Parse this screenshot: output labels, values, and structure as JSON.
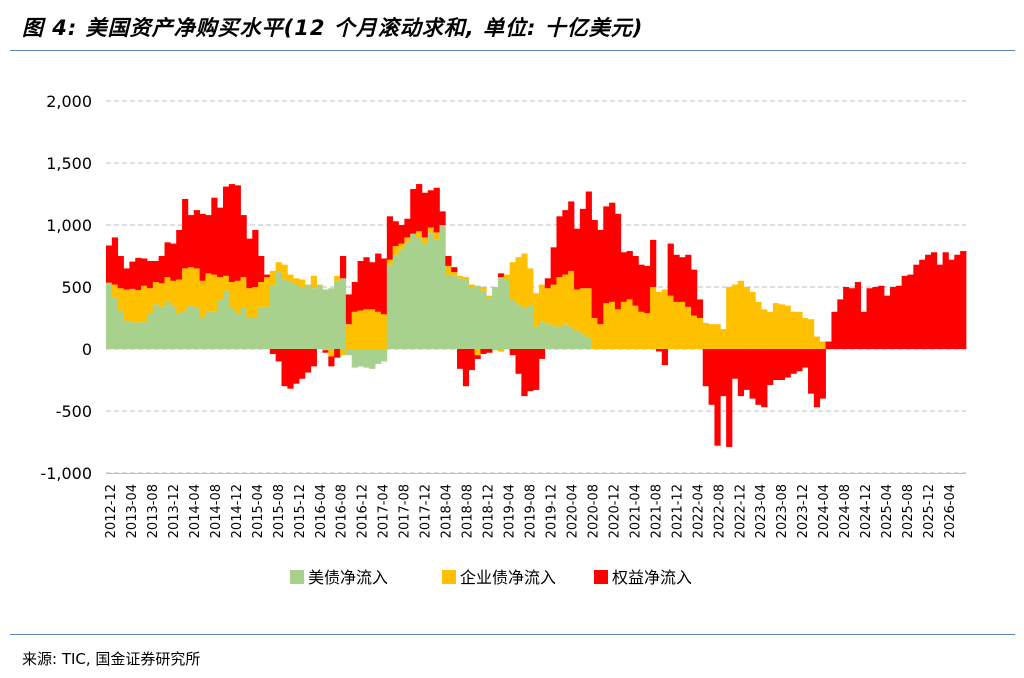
{
  "figure": {
    "title": "图 4:  美国资产净购买水平(12 个月滚动求和, 单位: 十亿美元)",
    "source": "来源: TIC, 国金证券研究所"
  },
  "chart_data": {
    "type": "bar",
    "stacked": true,
    "ylim": [
      -1000,
      2000
    ],
    "yticks": [
      2000,
      1500,
      1000,
      500,
      0,
      -500,
      -1000
    ],
    "ytick_labels": [
      "2,000",
      "1,500",
      "1,000",
      "500",
      "0",
      "-500",
      "-1,000"
    ],
    "grid": true,
    "legend_position": "bottom",
    "xtick_labels": [
      "2012-12",
      "2013-04",
      "2013-08",
      "2013-12",
      "2014-04",
      "2014-08",
      "2014-12",
      "2015-04",
      "2015-08",
      "2015-12",
      "2016-04",
      "2016-08",
      "2016-12",
      "2017-04",
      "2017-08",
      "2017-12",
      "2018-04",
      "2018-08",
      "2018-12",
      "2019-04",
      "2019-08",
      "2019-12",
      "2020-04",
      "2020-08",
      "2020-12",
      "2021-04",
      "2021-08",
      "2021-12",
      "2022-04",
      "2022-08",
      "2022-12",
      "2023-04",
      "2023-08",
      "2023-12",
      "2024-04",
      "2024-08",
      "2024-12",
      "2025-04",
      "2025-08",
      "2025-12",
      "2026-04"
    ],
    "series": [
      {
        "name": "美债净流入",
        "color": "#a9d18e",
        "values": [
          535,
          420,
          310,
          230,
          215,
          215,
          220,
          290,
          360,
          340,
          380,
          350,
          290,
          310,
          350,
          330,
          250,
          300,
          300,
          400,
          470,
          330,
          290,
          330,
          250,
          250,
          340,
          340,
          510,
          620,
          560,
          540,
          520,
          500,
          520,
          490,
          510,
          480,
          490,
          550,
          570,
          -50,
          -150,
          -140,
          -150,
          -160,
          -120,
          -100,
          680,
          760,
          800,
          860,
          930,
          900,
          850,
          940,
          880,
          1000,
          600,
          590,
          570,
          560,
          500,
          510,
          470,
          410,
          500,
          580,
          560,
          400,
          360,
          330,
          350,
          180,
          220,
          200,
          190,
          180,
          200,
          180,
          150,
          120,
          90,
          0
        ]
      },
      {
        "name": "企业债净流入",
        "color": "#ffc000",
        "values": [
          0,
          100,
          180,
          250,
          270,
          260,
          290,
          200,
          180,
          190,
          200,
          200,
          270,
          340,
          310,
          320,
          300,
          310,
          300,
          180,
          120,
          210,
          260,
          250,
          240,
          250,
          200,
          240,
          120,
          80,
          120,
          60,
          50,
          60,
          0,
          100,
          10,
          -10,
          -60,
          40,
          -50,
          200,
          300,
          310,
          320,
          320,
          300,
          280,
          40,
          70,
          50,
          40,
          0,
          50,
          50,
          40,
          60,
          0,
          70,
          30,
          20,
          20,
          20,
          -50,
          30,
          20,
          -10,
          -20,
          40,
          300,
          380,
          440,
          300,
          270,
          300,
          290,
          330,
          400,
          400,
          450,
          330,
          370,
          400,
          250,
          200,
          370,
          380,
          320,
          380,
          400,
          350,
          300,
          290,
          500,
          460,
          480,
          430,
          380,
          380,
          340,
          270,
          250,
          210,
          200,
          200,
          160,
          500,
          520,
          550,
          500,
          460,
          380,
          320,
          300,
          370,
          360,
          350,
          300,
          300,
          250,
          240,
          100,
          60
        ]
      },
      {
        "name": "权益净流入",
        "color": "#ff0000",
        "values": [
          300,
          380,
          260,
          170,
          220,
          260,
          220,
          220,
          170,
          220,
          280,
          300,
          400,
          560,
          420,
          470,
          540,
          470,
          620,
          560,
          720,
          790,
          770,
          500,
          400,
          460,
          210,
          20,
          -40,
          -100,
          -300,
          -320,
          -280,
          -240,
          -190,
          -140,
          0,
          -20,
          -80,
          -70,
          180,
          240,
          240,
          400,
          420,
          380,
          470,
          450,
          350,
          200,
          150,
          150,
          360,
          380,
          360,
          300,
          360,
          110,
          80,
          40,
          -160,
          -300,
          -170,
          -30,
          -40,
          -30,
          0,
          30,
          0,
          -50,
          -200,
          -380,
          -340,
          -330,
          -80,
          80,
          300,
          490,
          520,
          560,
          490,
          640,
          780,
          790,
          760,
          780,
          800,
          770,
          400,
          390,
          400,
          380,
          380,
          380,
          -20,
          -130,
          420,
          380,
          360,
          420,
          370,
          150,
          -300,
          -450,
          -780,
          -380,
          -790,
          -240,
          -380,
          -330,
          -400,
          -450,
          -470,
          -290,
          -250,
          -250,
          -230,
          -200,
          -180,
          -150,
          -360,
          -470,
          -400,
          60,
          300,
          400,
          500,
          490,
          540,
          300,
          490,
          500,
          510,
          430,
          500,
          510,
          590,
          600,
          680,
          720,
          760,
          780,
          680,
          780,
          720,
          760,
          790
        ]
      }
    ],
    "xlabel": "",
    "ylabel": ""
  }
}
